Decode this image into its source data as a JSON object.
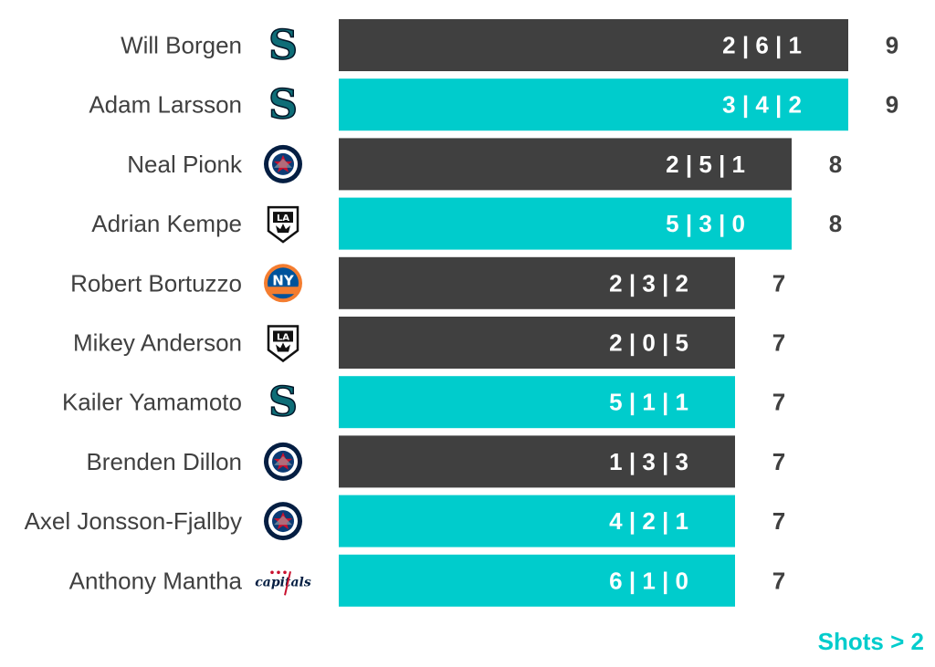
{
  "colors": {
    "dark": "#404040",
    "accent": "#00CCCC",
    "text": "#404040"
  },
  "chart_data": {
    "type": "bar",
    "orientation": "horizontal",
    "title": "",
    "xlabel": "",
    "ylabel": "",
    "xlim": [
      0,
      9
    ],
    "grid": false,
    "categories": [
      "Will Borgen",
      "Adam Larsson",
      "Neal Pionk",
      "Adrian Kempe",
      "Robert Bortuzzo",
      "Mikey Anderson",
      "Kailer Yamamoto",
      "Brenden Dillon",
      "Axel Jonsson-Fjallby",
      "Anthony Mantha"
    ],
    "values": [
      9,
      9,
      8,
      8,
      7,
      7,
      7,
      7,
      7,
      7
    ],
    "bar_labels": [
      "2 | 6 | 1",
      "3 | 4 | 2",
      "2 | 5 | 1",
      "5 | 3 | 0",
      "2 | 3 | 2",
      "2 | 0 | 5",
      "5 | 1 | 1",
      "1 | 3 | 3",
      "4 | 2 | 1",
      "6 | 1 | 0"
    ],
    "highlight": [
      false,
      true,
      false,
      true,
      false,
      false,
      true,
      false,
      true,
      true
    ],
    "team_icons": [
      "kraken-icon",
      "kraken-icon",
      "jets-icon",
      "kings-icon",
      "islanders-icon",
      "kings-icon",
      "kraken-icon",
      "jets-icon",
      "jets-icon",
      "capitals-icon"
    ],
    "legend": "Shots > 2"
  }
}
